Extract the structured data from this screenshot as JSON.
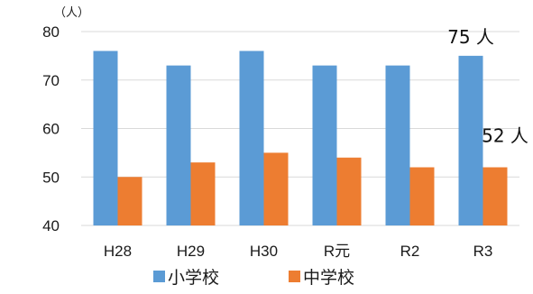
{
  "chart_data": {
    "type": "bar",
    "title": "",
    "xlabel": "",
    "ylabel": "",
    "unit_label": "（人）",
    "categories": [
      "H28",
      "H29",
      "H30",
      "R元",
      "R2",
      "R3"
    ],
    "series": [
      {
        "name": "小学校",
        "values": [
          76,
          73,
          76,
          73,
          73,
          75
        ],
        "color": "#5B9BD5"
      },
      {
        "name": "中学校",
        "values": [
          50,
          53,
          55,
          54,
          52,
          52
        ],
        "color": "#ED7D31"
      }
    ],
    "ylim": [
      40,
      80
    ],
    "yticks": [
      40,
      50,
      60,
      70,
      80
    ],
    "grid": true,
    "gridline_color": "#d9d9d9",
    "legend_position": "bottom",
    "annotations": [
      {
        "text": "75 人",
        "series": "小学校",
        "category": "R3"
      },
      {
        "text": "52 人",
        "series": "中学校",
        "category": "R3"
      }
    ]
  }
}
